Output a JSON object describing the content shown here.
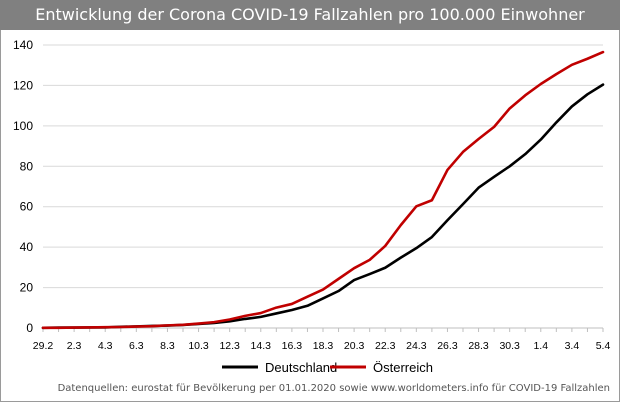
{
  "chart_data": {
    "type": "line",
    "title": "Entwicklung der Corona COVID-19 Fallzahlen pro 100.000 Einwohner",
    "x": [
      "29.2",
      "1.3",
      "2.3",
      "3.3",
      "4.3",
      "5.3",
      "6.3",
      "7.3",
      "8.3",
      "9.3",
      "10.3",
      "11.3",
      "12.3",
      "13.3",
      "14.3",
      "15.3",
      "16.3",
      "17.3",
      "18.3",
      "19.3",
      "20.3",
      "21.3",
      "22.3",
      "23.3",
      "24.3",
      "25.3",
      "26.3",
      "27.3",
      "28.3",
      "29.3",
      "30.3",
      "31.3",
      "1.4",
      "2.4",
      "3.4",
      "4.4",
      "5.4"
    ],
    "x_tick_labels": [
      "29.2",
      "2.3",
      "4.3",
      "6.3",
      "8.3",
      "10.3",
      "12.3",
      "14.3",
      "16.3",
      "18.3",
      "20.3",
      "22.3",
      "24.3",
      "26.3",
      "28.3",
      "30.3",
      "1.4",
      "3.4",
      "5.4"
    ],
    "ylim": [
      0,
      140
    ],
    "y_ticks": [
      0,
      20,
      40,
      60,
      80,
      100,
      120,
      140
    ],
    "grid": true,
    "legend_position": "bottom",
    "series": [
      {
        "name": "Deutschland",
        "color": "#000000",
        "values": [
          0.1,
          0.2,
          0.2,
          0.3,
          0.3,
          0.6,
          0.8,
          1.0,
          1.2,
          1.5,
          2.0,
          2.5,
          3.3,
          4.5,
          5.5,
          7.2,
          8.9,
          11.0,
          14.6,
          18.3,
          23.7,
          26.7,
          29.8,
          34.8,
          39.5,
          45.0,
          53.3,
          61.3,
          69.4,
          74.8,
          80.0,
          86.0,
          93.2,
          101.7,
          109.6,
          115.6,
          120.4
        ]
      },
      {
        "name": "Österreich",
        "color": "#c00000",
        "values": [
          0.1,
          0.1,
          0.2,
          0.3,
          0.4,
          0.5,
          0.7,
          0.9,
          1.3,
          1.6,
          2.2,
          2.9,
          4.2,
          6.0,
          7.4,
          10.1,
          11.9,
          15.5,
          19.0,
          24.3,
          29.6,
          33.7,
          40.6,
          50.9,
          60.2,
          63.2,
          78.2,
          87.1,
          93.5,
          99.5,
          108.6,
          115.1,
          120.7,
          125.6,
          130.2,
          133.2,
          136.5
        ]
      }
    ]
  },
  "source_text": "Datenquellen: eurostat für Bevölkerung per 01.01.2020 sowie www.worldometers.info für COVID-19 Fallzahlen"
}
